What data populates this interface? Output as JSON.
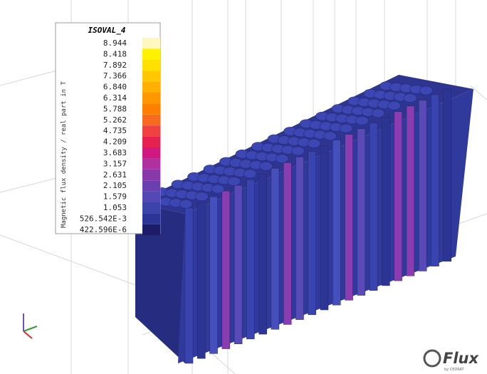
{
  "legend": {
    "title": "ISOVAL_4",
    "quantity": "Magnetic flux density / real part in T",
    "levels": [
      {
        "label": "8.944",
        "color": "#fff7c0"
      },
      {
        "label": "8.418",
        "color": "#fff200"
      },
      {
        "label": "7.892",
        "color": "#ffe000"
      },
      {
        "label": "7.366",
        "color": "#ffc800"
      },
      {
        "label": "6.840",
        "color": "#ffb000"
      },
      {
        "label": "6.314",
        "color": "#ff9800"
      },
      {
        "label": "5.788",
        "color": "#ff8000"
      },
      {
        "label": "5.262",
        "color": "#f86a20"
      },
      {
        "label": "4.735",
        "color": "#f04040"
      },
      {
        "label": "4.209",
        "color": "#e82050"
      },
      {
        "label": "3.683",
        "color": "#d01880"
      },
      {
        "label": "3.157",
        "color": "#b030a0"
      },
      {
        "label": "2.631",
        "color": "#8838a8"
      },
      {
        "label": "2.105",
        "color": "#6a40b0"
      },
      {
        "label": "1.579",
        "color": "#5448b4"
      },
      {
        "label": "1.053",
        "color": "#3c44ac"
      },
      {
        "label": "526.542E-3",
        "color": "#2c3498"
      },
      {
        "label": "422.596E-6",
        "color": "#1c1c68"
      }
    ]
  },
  "logo": {
    "name": "Flux",
    "vendor": "by CEDRAT"
  }
}
